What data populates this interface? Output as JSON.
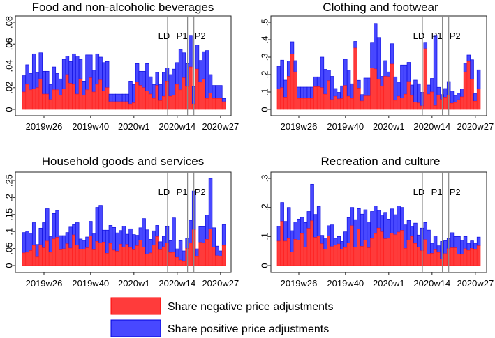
{
  "chart_data": {
    "type": "bar",
    "stacked": true,
    "legend": {
      "placement": "bottom-center",
      "entries": [
        {
          "label": "Share negative price adjustments",
          "color": "#ff3b3b"
        },
        {
          "label": "Share positive price adjustments",
          "color": "#4848ff"
        }
      ]
    },
    "x_weeks": "2019w20 to 2020w28 (61 weekly bars)",
    "xticks": [
      {
        "label": "2019w26",
        "week_index": 6
      },
      {
        "label": "2019w40",
        "week_index": 20
      },
      {
        "label": "2020w1",
        "week_index": 33
      },
      {
        "label": "2020w14",
        "week_index": 46
      },
      {
        "label": "2020w27",
        "week_index": 59
      }
    ],
    "vlines": [
      {
        "label": "LD",
        "week_index": 43.6
      },
      {
        "label": "P1",
        "week_index": 49.6
      },
      {
        "label": "P2",
        "week_index": 51.5
      }
    ],
    "panels": [
      {
        "title": "Food and non-alcoholic beverages",
        "ylim": [
          0,
          0.08
        ],
        "yticks": [
          "0",
          ".02",
          ".04",
          ".06",
          ".08"
        ],
        "ytick_values": [
          0,
          0.02,
          0.04,
          0.06,
          0.08
        ],
        "negative": [
          0.016,
          0.023,
          0.018,
          0.019,
          0.02,
          0.028,
          0.014,
          0.014,
          0.009,
          0.018,
          0.018,
          0.013,
          0.019,
          0.032,
          0.024,
          0.023,
          0.014,
          0.028,
          0.013,
          0.018,
          0.029,
          0.016,
          0.023,
          0.027,
          0.017,
          0.02,
          0.007,
          0.007,
          0.007,
          0.007,
          0.007,
          0.007,
          0.005,
          0.006,
          0.025,
          0.022,
          0.02,
          0.017,
          0.014,
          0.01,
          0.022,
          0.008,
          0.012,
          0.026,
          0.012,
          0.013,
          0.023,
          0.018,
          0.029,
          0.021,
          0.039,
          0.005,
          0.037,
          0.025,
          0.028,
          0.01,
          0.015,
          0.01,
          0.01,
          0.01,
          0.007
        ],
        "negative_plus_positive": [
          0.031,
          0.041,
          0.033,
          0.051,
          0.034,
          0.052,
          0.035,
          0.035,
          0.023,
          0.039,
          0.033,
          0.028,
          0.046,
          0.049,
          0.044,
          0.051,
          0.049,
          0.046,
          0.026,
          0.05,
          0.05,
          0.036,
          0.051,
          0.048,
          0.043,
          0.044,
          0.014,
          0.014,
          0.014,
          0.014,
          0.014,
          0.014,
          0.026,
          0.023,
          0.042,
          0.035,
          0.035,
          0.042,
          0.03,
          0.023,
          0.034,
          0.023,
          0.034,
          0.038,
          0.032,
          0.037,
          0.043,
          0.055,
          0.052,
          0.042,
          0.068,
          0.021,
          0.059,
          0.045,
          0.053,
          0.054,
          0.032,
          0.022,
          0.022,
          0.022,
          0.01
        ]
      },
      {
        "title": "Clothing and footwear",
        "ylim": [
          0,
          0.5
        ],
        "yticks": [
          "0",
          ".1",
          ".2",
          ".3",
          ".4",
          ".5"
        ],
        "ytick_values": [
          0,
          0.1,
          0.2,
          0.3,
          0.4,
          0.5
        ],
        "negative": [
          0.118,
          0.125,
          0.07,
          0.19,
          0.317,
          0.215,
          0.063,
          0.063,
          0.063,
          0.063,
          0.063,
          0.13,
          0.13,
          0.125,
          0.087,
          0.165,
          0.056,
          0.075,
          0.06,
          0.062,
          0.137,
          0.075,
          0.063,
          0.352,
          0.122,
          0.048,
          0.077,
          0.077,
          0.238,
          0.232,
          0.173,
          0.133,
          0.19,
          0.188,
          0.26,
          0.052,
          0.075,
          0.065,
          0.087,
          0.16,
          0.08,
          0.042,
          0.037,
          0.02,
          0.348,
          0.087,
          0.1,
          0.022,
          0.083,
          0.057,
          0.07,
          0.08,
          0.035,
          0.04,
          0.055,
          0.072,
          0.215,
          0.275,
          0.172,
          0.047,
          0.117
        ],
        "negative_plus_positive": [
          0.248,
          0.283,
          0.168,
          0.278,
          0.388,
          0.28,
          0.128,
          0.128,
          0.128,
          0.128,
          0.128,
          0.187,
          0.187,
          0.3,
          0.23,
          0.225,
          0.19,
          0.12,
          0.098,
          0.135,
          0.288,
          0.225,
          0.147,
          0.39,
          0.167,
          0.085,
          0.18,
          0.18,
          0.385,
          0.493,
          0.413,
          0.19,
          0.28,
          0.215,
          0.377,
          0.187,
          0.157,
          0.255,
          0.255,
          0.27,
          0.14,
          0.168,
          0.147,
          0.098,
          0.385,
          0.14,
          0.178,
          0.425,
          0.127,
          0.085,
          0.12,
          0.16,
          0.105,
          0.078,
          0.093,
          0.117,
          0.265,
          0.312,
          0.285,
          0.09,
          0.227
        ]
      },
      {
        "title": "Household goods and services",
        "ylim": [
          0,
          0.25
        ],
        "yticks": [
          "0",
          ".05",
          ".1",
          ".15",
          ".2",
          ".25"
        ],
        "ytick_values": [
          0,
          0.05,
          0.1,
          0.15,
          0.2,
          0.25
        ],
        "negative": [
          0.037,
          0.039,
          0.044,
          0.059,
          0.025,
          0.061,
          0.052,
          0.072,
          0.039,
          0.078,
          0.083,
          0.046,
          0.049,
          0.064,
          0.051,
          0.09,
          0.06,
          0.048,
          0.048,
          0.052,
          0.087,
          0.046,
          0.071,
          0.067,
          0.069,
          0.036,
          0.065,
          0.045,
          0.042,
          0.063,
          0.054,
          0.062,
          0.053,
          0.046,
          0.058,
          0.075,
          0.054,
          0.034,
          0.037,
          0.06,
          0.085,
          0.046,
          0.055,
          0.067,
          0.038,
          0.039,
          0.024,
          0.016,
          0.012,
          0.05,
          0.066,
          0.105,
          0.026,
          0.068,
          0.066,
          0.077,
          0.108,
          0.054,
          0.029,
          0.028,
          0.059
        ],
        "negative_plus_positive": [
          0.097,
          0.101,
          0.095,
          0.126,
          0.062,
          0.11,
          0.126,
          0.167,
          0.085,
          0.153,
          0.162,
          0.088,
          0.088,
          0.097,
          0.113,
          0.12,
          0.126,
          0.078,
          0.074,
          0.084,
          0.13,
          0.095,
          0.171,
          0.177,
          0.104,
          0.104,
          0.118,
          0.112,
          0.096,
          0.103,
          0.116,
          0.092,
          0.108,
          0.091,
          0.089,
          0.111,
          0.138,
          0.105,
          0.077,
          0.102,
          0.118,
          0.07,
          0.086,
          0.114,
          0.073,
          0.14,
          0.049,
          0.073,
          0.043,
          0.08,
          0.133,
          0.219,
          0.049,
          0.114,
          0.114,
          0.148,
          0.256,
          0.111,
          0.057,
          0.043,
          0.12
        ]
      },
      {
        "title": "Recreation and culture",
        "ylim": [
          0,
          0.3
        ],
        "yticks": [
          "0",
          ".1",
          ".2",
          ".3"
        ],
        "ytick_values": [
          0,
          0.1,
          0.2,
          0.3
        ],
        "negative": [
          0.084,
          0.152,
          0.084,
          0.093,
          0.047,
          0.09,
          0.088,
          0.11,
          0.064,
          0.128,
          0.154,
          0.097,
          0.101,
          0.075,
          0.056,
          0.102,
          0.065,
          0.07,
          0.074,
          0.056,
          0.062,
          0.078,
          0.137,
          0.063,
          0.125,
          0.066,
          0.088,
          0.061,
          0.093,
          0.11,
          0.129,
          0.116,
          0.092,
          0.094,
          0.112,
          0.106,
          0.115,
          0.121,
          0.059,
          0.088,
          0.1,
          0.076,
          0.064,
          0.051,
          0.089,
          0.04,
          0.042,
          0.054,
          0.045,
          0.023,
          0.041,
          0.058,
          0.061,
          0.061,
          0.039,
          0.039,
          0.058,
          0.052,
          0.059,
          0.055,
          0.068
        ],
        "negative_plus_positive": [
          0.135,
          0.217,
          0.152,
          0.2,
          0.12,
          0.15,
          0.16,
          0.166,
          0.148,
          0.186,
          0.28,
          0.176,
          0.203,
          0.104,
          0.095,
          0.137,
          0.14,
          0.094,
          0.1,
          0.083,
          0.116,
          0.165,
          0.2,
          0.158,
          0.196,
          0.177,
          0.192,
          0.15,
          0.186,
          0.205,
          0.19,
          0.174,
          0.183,
          0.16,
          0.195,
          0.175,
          0.205,
          0.2,
          0.14,
          0.155,
          0.135,
          0.146,
          0.105,
          0.129,
          0.148,
          0.122,
          0.077,
          0.102,
          0.068,
          0.083,
          0.086,
          0.093,
          0.113,
          0.1,
          0.1,
          0.087,
          0.1,
          0.077,
          0.085,
          0.077,
          0.098
        ]
      }
    ]
  }
}
